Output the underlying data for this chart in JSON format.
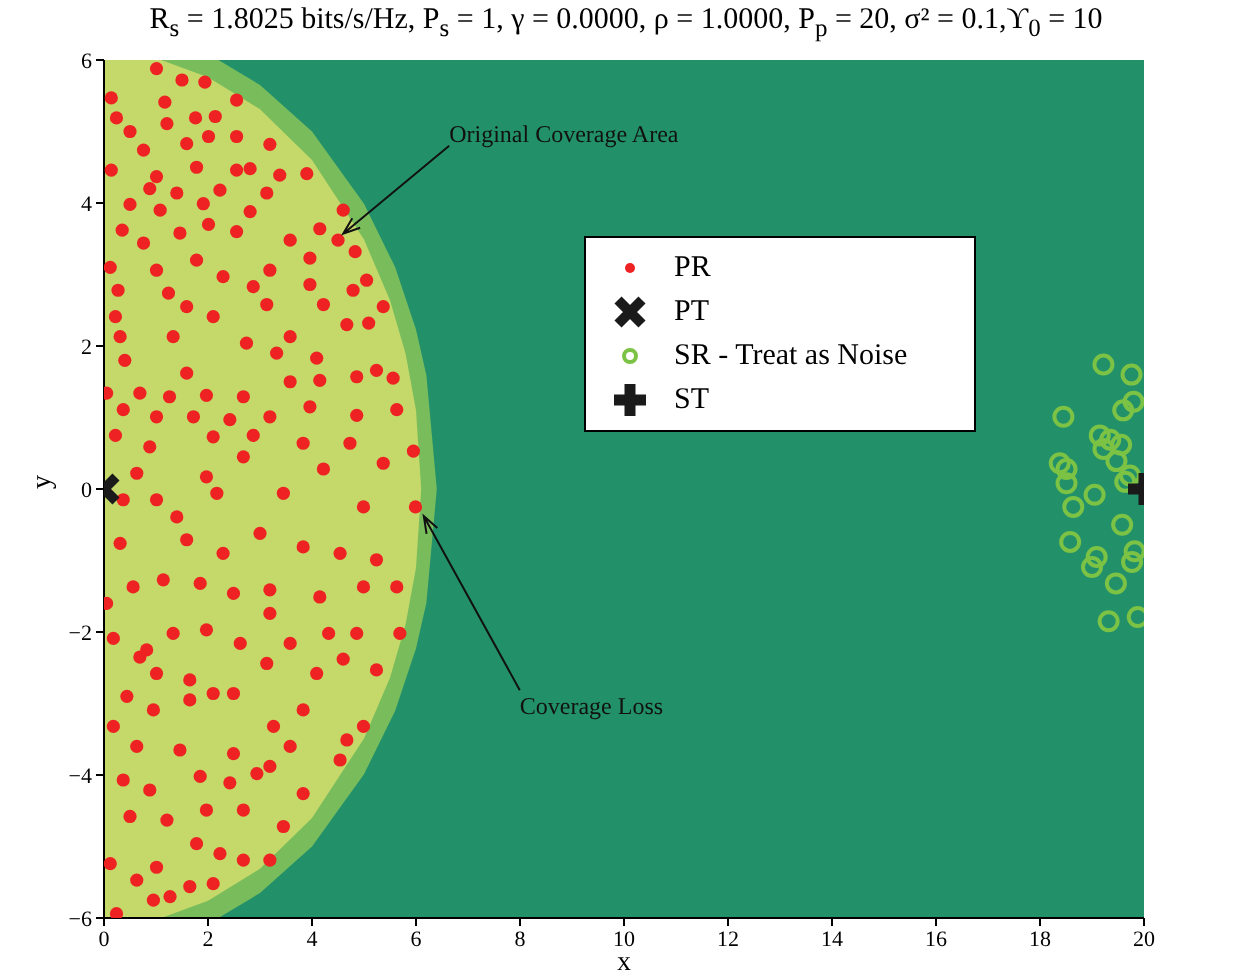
{
  "chart_data": {
    "type": "scatter",
    "title": "R$_{s}$ = 1.8025 bits/s/Hz, P$_{s}$ = 1, γ = 0.0000, ρ = 1.0000, P$_{p}$ = 20, σ² = 0.1,ϒ$_{0}$ = 10",
    "xlabel": "x",
    "ylabel": "y",
    "xlim": [
      0,
      20
    ],
    "xticks": [
      0,
      2,
      4,
      6,
      8,
      10,
      12,
      14,
      16,
      18,
      20
    ],
    "ylim": [
      -6,
      6
    ],
    "yticks": [
      {
        "value": -6,
        "label": "−6"
      },
      {
        "value": -4,
        "label": "−4"
      },
      {
        "value": -2,
        "label": "−2"
      },
      0,
      2,
      4,
      6
    ],
    "legend": "top",
    "grid": false,
    "annotations": [
      {
        "text": "Original Coverage Area",
        "x": 4.6,
        "y": 3.57
      },
      {
        "text": "Coverage Loss",
        "x": 6.15,
        "y": -0.38
      }
    ],
    "series": [
      {
        "type": "area",
        "color": "#79bc5c",
        "x": [
          0,
          2.2,
          3,
          4,
          5,
          5.6,
          6,
          6.2,
          6.4
        ],
        "values": [
          6,
          6,
          5.65,
          5.0,
          3.99,
          3.1,
          2.23,
          1.59,
          0
        ]
      },
      {
        "type": "area",
        "color": "#79bc5c",
        "x": [
          0,
          2.2,
          3,
          4,
          5,
          5.6,
          6,
          6.2,
          6.4
        ],
        "values": [
          -6,
          -6,
          -5.65,
          -5.0,
          -3.99,
          -3.1,
          -2.23,
          -1.59,
          0
        ]
      },
      {
        "type": "area",
        "color": "#c5d96a",
        "x": [
          0,
          1.1,
          2,
          3,
          4,
          5,
          5.5,
          5.8,
          6,
          6.1
        ],
        "values": [
          6,
          6,
          5.76,
          5.31,
          4.6,
          3.49,
          2.64,
          1.89,
          1.1,
          0
        ]
      },
      {
        "type": "area",
        "color": "#c5d96a",
        "x": [
          0,
          1.1,
          2,
          3,
          4,
          5,
          5.5,
          5.8,
          6,
          6.1
        ],
        "values": [
          -6,
          -6,
          -5.76,
          -5.31,
          -4.6,
          -3.49,
          -2.64,
          -1.89,
          -1.1,
          0
        ]
      },
      {
        "name": "PR",
        "marker": "circle",
        "color": "#ee2222",
        "x": [
          1.01,
          1.5,
          1.94,
          0.14,
          2.55,
          1.17,
          0.24,
          1.76,
          2.14,
          1.21,
          0.5,
          2.01,
          2.55,
          0.76,
          1.59,
          3.19,
          0.14,
          1.01,
          1.78,
          2.55,
          2.81,
          3.38,
          3.9,
          0.88,
          1.4,
          2.23,
          3.13,
          0.5,
          1.08,
          1.91,
          2.81,
          4.6,
          0.35,
          0.76,
          1.46,
          2.01,
          2.55,
          3.58,
          4.15,
          4.5,
          0.12,
          1.01,
          1.78,
          2.29,
          3.19,
          3.96,
          4.83,
          5.05,
          0.27,
          1.24,
          2.87,
          3.96,
          4.79,
          5.37,
          0.22,
          1.59,
          2.1,
          3.13,
          4.22,
          4.67,
          0.31,
          1.33,
          2.74,
          3.58,
          5.09,
          0.4,
          1.59,
          3.32,
          4.09,
          4.86,
          5.24,
          5.56,
          0.05,
          0.69,
          1.26,
          1.97,
          2.68,
          3.58,
          4.15,
          5.63,
          0.37,
          1.01,
          1.72,
          2.42,
          3.19,
          3.96,
          4.86,
          0.22,
          0.88,
          2.1,
          2.87,
          3.83,
          4.73,
          5.95,
          0.63,
          1.97,
          2.68,
          4.22,
          5.37,
          0.37,
          1.01,
          2.17,
          3.45,
          4.99,
          5.99,
          0.31,
          1.4,
          1.59,
          2.29,
          3.0,
          3.83,
          4.54,
          5.24,
          0.05,
          0.56,
          1.14,
          1.85,
          2.49,
          3.19,
          4.15,
          4.99,
          5.63,
          0.18,
          0.82,
          1.33,
          1.97,
          2.62,
          3.19,
          3.58,
          4.32,
          4.86,
          5.69,
          0.69,
          1.01,
          1.65,
          2.49,
          3.13,
          4.09,
          4.6,
          5.24,
          0.44,
          0.95,
          1.65,
          2.1,
          3.26,
          3.83,
          4.99,
          0.18,
          0.63,
          1.46,
          2.49,
          2.94,
          3.58,
          4.67,
          0.37,
          0.88,
          1.85,
          2.42,
          3.19,
          3.83,
          4.54,
          0.5,
          1.21,
          1.97,
          2.68,
          3.45,
          0.12,
          0.63,
          1.01,
          1.78,
          2.23,
          2.68,
          3.19,
          0.95,
          1.27,
          1.65,
          2.1,
          0.24
        ],
        "values": [
          5.88,
          5.72,
          5.69,
          5.47,
          5.44,
          5.41,
          5.19,
          5.19,
          5.21,
          5.11,
          5.0,
          4.93,
          4.93,
          4.74,
          4.83,
          4.82,
          4.46,
          4.37,
          4.5,
          4.46,
          4.48,
          4.39,
          4.41,
          4.2,
          4.14,
          4.18,
          4.14,
          3.98,
          3.9,
          3.99,
          3.88,
          3.9,
          3.62,
          3.44,
          3.58,
          3.7,
          3.6,
          3.48,
          3.64,
          3.48,
          3.1,
          3.06,
          3.2,
          2.97,
          3.06,
          3.23,
          3.32,
          2.92,
          2.78,
          2.74,
          2.83,
          2.86,
          2.78,
          2.55,
          2.41,
          2.55,
          2.41,
          2.58,
          2.58,
          2.3,
          2.13,
          2.13,
          2.04,
          2.13,
          2.32,
          1.8,
          1.62,
          1.9,
          1.83,
          1.57,
          1.66,
          1.55,
          1.34,
          1.34,
          1.29,
          1.31,
          1.29,
          1.5,
          1.52,
          1.11,
          1.11,
          1.01,
          1.01,
          0.97,
          1.01,
          1.15,
          1.03,
          0.75,
          0.59,
          0.73,
          0.75,
          0.64,
          0.64,
          0.53,
          0.22,
          0.17,
          0.45,
          0.28,
          0.36,
          -0.15,
          -0.15,
          -0.06,
          -0.06,
          -0.25,
          -0.25,
          -0.76,
          -0.39,
          -0.71,
          -0.9,
          -0.62,
          -0.81,
          -0.9,
          -0.99,
          -1.6,
          -1.37,
          -1.27,
          -1.32,
          -1.46,
          -1.41,
          -1.51,
          -1.37,
          -1.37,
          -2.09,
          -2.25,
          -2.02,
          -1.97,
          -2.16,
          -1.74,
          -2.16,
          -2.02,
          -2.02,
          -2.02,
          -2.35,
          -2.58,
          -2.67,
          -2.86,
          -2.44,
          -2.58,
          -2.38,
          -2.53,
          -2.9,
          -3.09,
          -2.95,
          -2.86,
          -3.32,
          -3.09,
          -3.32,
          -3.32,
          -3.6,
          -3.65,
          -3.7,
          -3.98,
          -3.6,
          -3.51,
          -4.07,
          -4.21,
          -4.02,
          -4.11,
          -3.88,
          -4.26,
          -3.79,
          -4.58,
          -4.63,
          -4.49,
          -4.49,
          -4.72,
          -5.24,
          -5.47,
          -5.29,
          -4.96,
          -5.1,
          -5.19,
          -5.19,
          -5.75,
          -5.7,
          -5.56,
          -5.52,
          -5.94
        ]
      },
      {
        "name": "PT",
        "marker": "x",
        "color": "#1a1a1a",
        "x": [
          0
        ],
        "values": [
          0
        ]
      },
      {
        "name": "SR - Treat as Noise",
        "marker": "circle_open",
        "color": "#7cc244",
        "x": [
          19.22,
          19.76,
          19.8,
          19.6,
          18.45,
          19.15,
          19.35,
          19.22,
          19.56,
          19.47,
          18.38,
          18.51,
          19.73,
          19.64,
          18.51,
          19.05,
          18.64,
          19.58,
          18.58,
          19.82,
          19.09,
          19.77,
          19.0,
          19.46,
          19.32,
          19.88
        ],
        "values": [
          1.74,
          1.6,
          1.22,
          1.1,
          1.01,
          0.75,
          0.69,
          0.56,
          0.62,
          0.39,
          0.36,
          0.28,
          0.19,
          0.1,
          0.08,
          -0.08,
          -0.25,
          -0.5,
          -0.74,
          -0.87,
          -0.95,
          -1.02,
          -1.09,
          -1.32,
          -1.85,
          -1.79
        ]
      },
      {
        "name": "ST",
        "marker": "cross",
        "color": "#1a1a1a",
        "x": [
          20
        ],
        "values": [
          0
        ]
      }
    ]
  }
}
